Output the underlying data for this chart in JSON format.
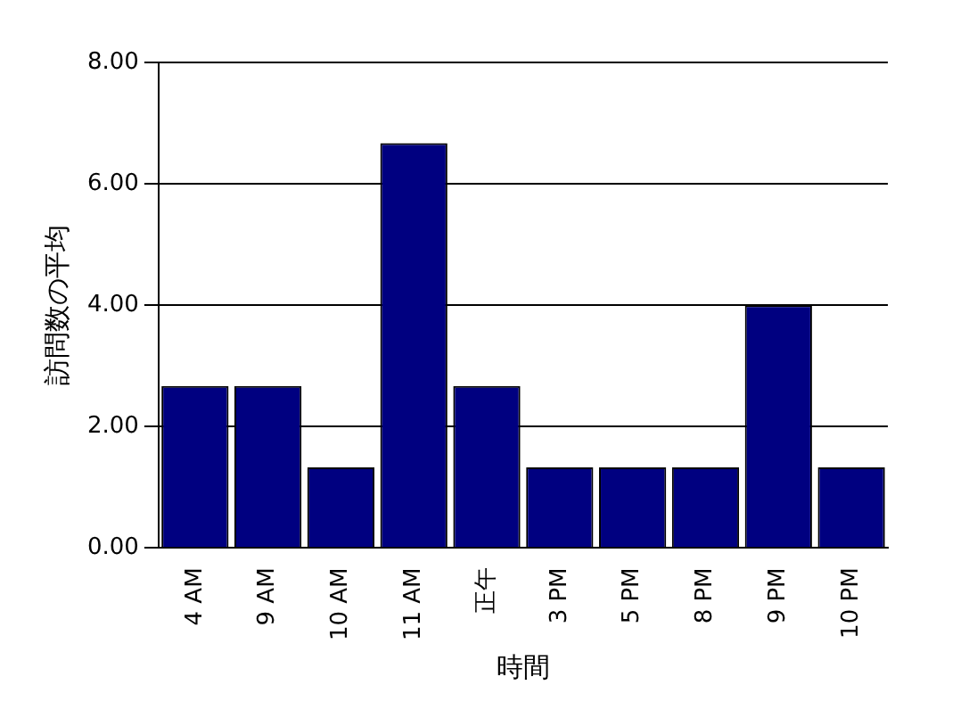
{
  "chart_data": {
    "type": "bar",
    "xlabel": "時間",
    "ylabel": "訪問数の平均",
    "categories": [
      "4 AM",
      "9 AM",
      "10 AM",
      "11 AM",
      "正午",
      "3 PM",
      "5 PM",
      "8 PM",
      "9 PM",
      "10 PM"
    ],
    "values": [
      2.67,
      2.67,
      1.33,
      6.67,
      2.67,
      1.33,
      1.33,
      1.33,
      4.0,
      1.33
    ],
    "color": "#000080",
    "ylim": [
      0,
      8
    ],
    "yticks": [
      {
        "value": 0,
        "label": "0.00"
      },
      {
        "value": 2,
        "label": "2.00"
      },
      {
        "value": 4,
        "label": "4.00"
      },
      {
        "value": 6,
        "label": "6.00"
      },
      {
        "value": 8,
        "label": "8.00"
      }
    ],
    "grid": "y",
    "legend": false
  }
}
